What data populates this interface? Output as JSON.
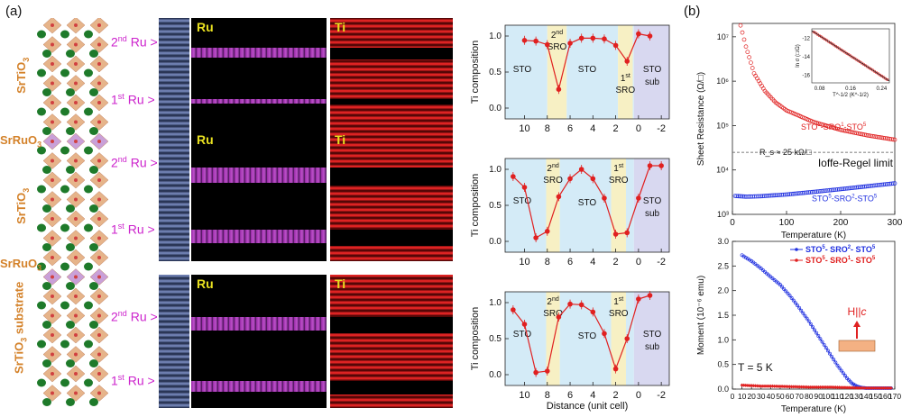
{
  "panel_labels": {
    "a": "(a)",
    "b": "(b)"
  },
  "structure_labels": {
    "top": [
      "SrTiO",
      "3"
    ],
    "sro_top": [
      "SrRuO",
      "3"
    ],
    "middle": [
      "SrTiO",
      "3"
    ],
    "sro_bottom": [
      "SrRuO",
      "3"
    ],
    "substrate": [
      "SrTiO",
      "3",
      " substrate"
    ]
  },
  "ru_labels": {
    "second": [
      "2",
      "nd",
      " Ru"
    ],
    "first": [
      "1",
      "st",
      " Ru"
    ]
  },
  "eels_tags": {
    "ru": "Ru",
    "ti": "Ti"
  },
  "composition_plots": {
    "ylabel": "Ti composition",
    "xlabel": "Distance (unit cell)",
    "x_ticks": [
      "10",
      "8",
      "6",
      "4",
      "2",
      "0",
      "-2"
    ],
    "y_ticks": [
      "0.0",
      "0.5",
      "1.0"
    ],
    "regions": {
      "sto": "STO",
      "second_sro": [
        "2",
        "nd",
        "SRO"
      ],
      "first_sro": [
        "1",
        "st",
        "SRO"
      ],
      "sto_sub": [
        "STO",
        "sub"
      ]
    }
  },
  "chart_data": [
    {
      "type": "line",
      "title": "",
      "xlabel": "",
      "ylabel": "Ti composition",
      "xlim": [
        11.7,
        -2.7
      ],
      "ylim": [
        -0.15,
        1.15
      ],
      "x": [
        10,
        9,
        8,
        7,
        6,
        5,
        4,
        3,
        2,
        1,
        0,
        -1
      ],
      "series": [
        {
          "values": [
            0.94,
            0.93,
            0.88,
            0.26,
            0.9,
            0.97,
            0.97,
            0.96,
            0.87,
            0.65,
            1.03,
            1.0
          ]
        }
      ]
    },
    {
      "type": "line",
      "title": "",
      "xlabel": "",
      "ylabel": "Ti composition",
      "xlim": [
        11.7,
        -2.7
      ],
      "ylim": [
        -0.15,
        1.15
      ],
      "x": [
        11,
        10,
        9,
        8,
        7,
        6,
        5,
        4,
        3,
        2,
        1,
        0,
        -1,
        -2
      ],
      "series": [
        {
          "values": [
            0.9,
            0.75,
            0.05,
            0.14,
            0.62,
            0.87,
            1.0,
            0.87,
            0.6,
            0.1,
            0.12,
            0.6,
            1.05,
            1.05
          ]
        }
      ]
    },
    {
      "type": "line",
      "title": "",
      "xlabel": "Distance (unit cell)",
      "ylabel": "Ti composition",
      "xlim": [
        11.7,
        -2.7
      ],
      "ylim": [
        -0.15,
        1.15
      ],
      "x": [
        11,
        10,
        9,
        8,
        7,
        6,
        5,
        4,
        3,
        2,
        1,
        0,
        -1
      ],
      "series": [
        {
          "values": [
            0.9,
            0.7,
            0.03,
            0.05,
            0.8,
            0.98,
            0.97,
            0.87,
            0.57,
            0.08,
            0.5,
            1.05,
            1.1
          ]
        }
      ]
    },
    {
      "type": "scatter",
      "title": "",
      "xlabel": "Temperature (K)",
      "ylabel": "Sheet Resistance (Ω/□)",
      "xlim": [
        0,
        300
      ],
      "ylim": [
        1000,
        20000000
      ],
      "log_y": true,
      "x_ticks": [
        "0",
        "100",
        "200",
        "300"
      ],
      "y_ticks": [
        "10³",
        "10⁴",
        "10⁵",
        "10⁶",
        "10⁷"
      ],
      "annotations": {
        "rs": "R_s ≈ 25 kΩ/□",
        "ioffe": "Ioffe-Regel limit",
        "series1": [
          "STO",
          "5",
          "-SRO",
          "1",
          "-STO",
          "5"
        ],
        "series2": [
          "STO",
          "5",
          "-SRO",
          "2",
          "-STO",
          "5"
        ]
      },
      "series": [
        {
          "name": "STO⁵-SRO¹-STO⁵",
          "color": "#e02020",
          "x": [
            15,
            25,
            40,
            60,
            80,
            100,
            150,
            200,
            250,
            300
          ],
          "values": [
            18000000,
            6000000,
            1500000,
            600000,
            330000,
            220000,
            120000,
            80000,
            60000,
            48000
          ]
        },
        {
          "name": "STO⁵-SRO²-STO⁵",
          "color": "#2030e0",
          "x": [
            5,
            25,
            50,
            100,
            150,
            200,
            250,
            300
          ],
          "values": [
            2600,
            2500,
            2550,
            2800,
            3200,
            3700,
            4300,
            5000
          ]
        }
      ],
      "inset": {
        "xlabel": "T^-1/2 (K^-1/2)",
        "ylabel": "ln σ (□/Ω)",
        "x_ticks": [
          "0.08",
          "0.16",
          "0.24"
        ],
        "y_ticks": [
          "-12",
          "-14",
          "-16"
        ],
        "x": [
          0.06,
          0.26
        ],
        "values": [
          -11.2,
          -16.6
        ]
      }
    },
    {
      "type": "scatter",
      "title": "",
      "xlabel": "Temperature (K)",
      "ylabel": "Moment (10⁻⁶ emu)",
      "xlim": [
        0,
        170
      ],
      "ylim": [
        0,
        3.0
      ],
      "x_ticks": [
        "0",
        "10",
        "20",
        "30",
        "40",
        "50",
        "60",
        "70",
        "80",
        "90",
        "100",
        "110",
        "120",
        "130",
        "140",
        "150",
        "160",
        "170"
      ],
      "y_ticks": [
        "0.0",
        "0.5",
        "1.0",
        "1.5",
        "2.0",
        "2.5",
        "3.0"
      ],
      "annotations": {
        "temp": "T = 5 K",
        "field": [
          "H",
          "||",
          "c"
        ]
      },
      "series": [
        {
          "name": "STO⁵- SRO²- STO⁵",
          "color": "#2030e0",
          "x": [
            10,
            20,
            30,
            40,
            50,
            60,
            70,
            80,
            90,
            100,
            110,
            120,
            125,
            130,
            135,
            140,
            150,
            160,
            168
          ],
          "values": [
            2.72,
            2.6,
            2.45,
            2.28,
            2.12,
            1.9,
            1.65,
            1.38,
            1.08,
            0.78,
            0.48,
            0.22,
            0.12,
            0.06,
            0.03,
            0.02,
            0.02,
            0.02,
            0.02
          ]
        },
        {
          "name": "STO⁵- SRO¹- STO⁵",
          "color": "#e02020",
          "x": [
            10,
            20,
            30,
            40,
            60,
            80,
            100,
            120,
            140,
            160,
            168
          ],
          "values": [
            0.08,
            0.07,
            0.06,
            0.06,
            0.05,
            0.04,
            0.04,
            0.03,
            0.02,
            0.02,
            0.02
          ]
        }
      ],
      "legend": [
        {
          "parts": [
            "STO",
            "5",
            "- SRO",
            "2",
            "- STO",
            "5"
          ],
          "color": "#2030e0"
        },
        {
          "parts": [
            "STO",
            "5",
            "- SRO",
            "1",
            "- STO",
            "5"
          ],
          "color": "#e02020"
        }
      ]
    }
  ]
}
